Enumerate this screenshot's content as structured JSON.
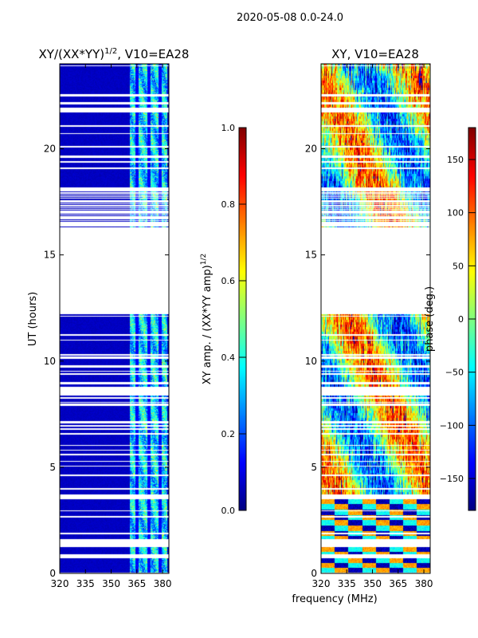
{
  "suptitle": "2020-05-08 0.0-24.0",
  "xlabel": "frequency (MHz)",
  "chart_data": [
    {
      "type": "heatmap",
      "title_main": "XY/(XX*YY)",
      "title_sup": "1/2",
      "title_rest": ", V10=EA28",
      "xlabel": "frequency (MHz)",
      "ylabel": "UT (hours)",
      "xlim": [
        320,
        383.7
      ],
      "ylim": [
        0,
        24
      ],
      "xticks": [
        "320",
        "335",
        "350",
        "365",
        "380"
      ],
      "yticks": [
        "0",
        "5",
        "10",
        "15",
        "20"
      ],
      "colorbar": {
        "label_main": "XY amp. / (XX*YY amp)",
        "label_sup": "1/2",
        "range": [
          0,
          1
        ],
        "ticks": [
          "0.0",
          "0.2",
          "0.4",
          "0.6",
          "0.8",
          "1.0"
        ],
        "colormap": "jet"
      },
      "blank_ut_ranges": [
        [
          0.0,
          0.05
        ],
        [
          0.7,
          0.9
        ],
        [
          1.25,
          1.6
        ],
        [
          3.5,
          3.7
        ],
        [
          8.4,
          8.7
        ],
        [
          12.2,
          16.3
        ]
      ],
      "description_values": {
        "background_amp": 0.05,
        "band_mhz": [
          361,
          383
        ],
        "band_amp_range": [
          0.25,
          0.7
        ]
      }
    },
    {
      "type": "heatmap",
      "title": "XY, V10=EA28",
      "xlabel": "frequency (MHz)",
      "ylabel": "",
      "xlim": [
        320,
        383.7
      ],
      "ylim": [
        0,
        24
      ],
      "xticks": [
        "320",
        "335",
        "350",
        "365",
        "380"
      ],
      "yticks": [
        "0",
        "5",
        "10",
        "15",
        "20"
      ],
      "colorbar": {
        "label": "phase (deg.)",
        "range": [
          -180,
          180
        ],
        "ticks": [
          "−150",
          "−100",
          "−50",
          "0",
          "50",
          "100",
          "150"
        ],
        "colormap": "jet"
      },
      "blank_ut_ranges": [
        [
          0.0,
          0.05
        ],
        [
          0.7,
          0.9
        ],
        [
          1.25,
          1.6
        ],
        [
          3.5,
          3.7
        ],
        [
          8.4,
          8.7
        ],
        [
          12.2,
          16.3
        ]
      ]
    }
  ]
}
